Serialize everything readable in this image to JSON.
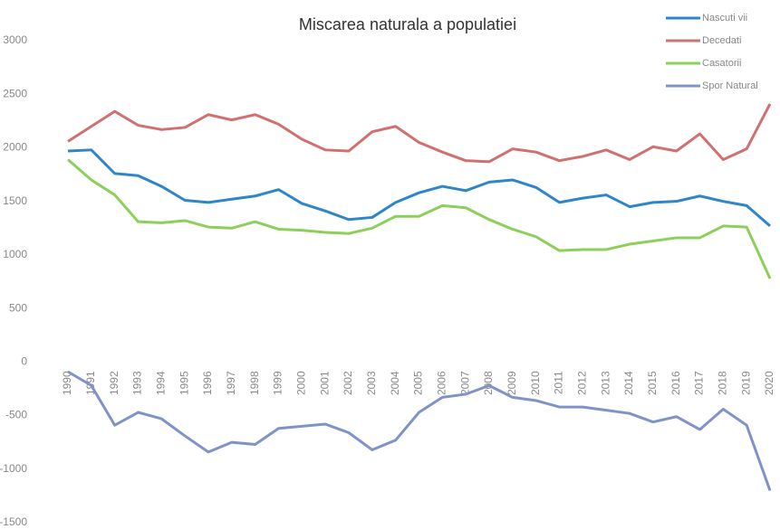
{
  "chart_data": {
    "type": "line",
    "title": "Miscarea naturala a populatiei",
    "categories": [
      "1990",
      "1991",
      "1992",
      "1993",
      "1994",
      "1995",
      "1996",
      "1997",
      "1998",
      "1999",
      "2000",
      "2001",
      "2002",
      "2003",
      "2004",
      "2005",
      "2006",
      "2007",
      "2008",
      "2009",
      "2010",
      "2011",
      "2012",
      "2013",
      "2014",
      "2015",
      "2016",
      "2017",
      "2018",
      "2019",
      "2020"
    ],
    "series": [
      {
        "name": "Nascuti vii",
        "color": "#2e86c8",
        "values": [
          1970,
          1980,
          1760,
          1740,
          1640,
          1510,
          1490,
          1520,
          1550,
          1610,
          1480,
          1410,
          1330,
          1350,
          1490,
          1580,
          1640,
          1600,
          1680,
          1700,
          1630,
          1490,
          1530,
          1560,
          1450,
          1490,
          1500,
          1550,
          1500,
          1460,
          1270
        ]
      },
      {
        "name": "Decedati",
        "color": "#d0706f",
        "values": [
          2060,
          2200,
          2340,
          2210,
          2170,
          2190,
          2310,
          2260,
          2310,
          2220,
          2080,
          1980,
          1970,
          2150,
          2200,
          2050,
          1960,
          1880,
          1870,
          1990,
          1960,
          1880,
          1920,
          1980,
          1890,
          2010,
          1970,
          2130,
          1890,
          1990,
          2410
        ]
      },
      {
        "name": "Casatorii",
        "color": "#8ccf5b",
        "values": [
          1890,
          1700,
          1560,
          1310,
          1300,
          1320,
          1260,
          1250,
          1310,
          1240,
          1230,
          1210,
          1200,
          1250,
          1360,
          1360,
          1460,
          1440,
          1330,
          1240,
          1170,
          1040,
          1050,
          1050,
          1100,
          1130,
          1160,
          1160,
          1270,
          1260,
          780
        ]
      },
      {
        "name": "Spor Natural",
        "color": "#7f93c9",
        "values": [
          -90,
          -220,
          -590,
          -470,
          -530,
          -690,
          -840,
          -750,
          -770,
          -620,
          -600,
          -580,
          -660,
          -820,
          -730,
          -470,
          -330,
          -300,
          -220,
          -330,
          -360,
          -420,
          -420,
          -450,
          -480,
          -560,
          -510,
          -630,
          -440,
          -590,
          -1200
        ]
      }
    ],
    "ylim": [
      -1500,
      3000
    ],
    "yticks": [
      -1500,
      -1000,
      -500,
      0,
      500,
      1000,
      1500,
      2000,
      2500,
      3000
    ],
    "grid": false,
    "legend": "top-right"
  }
}
